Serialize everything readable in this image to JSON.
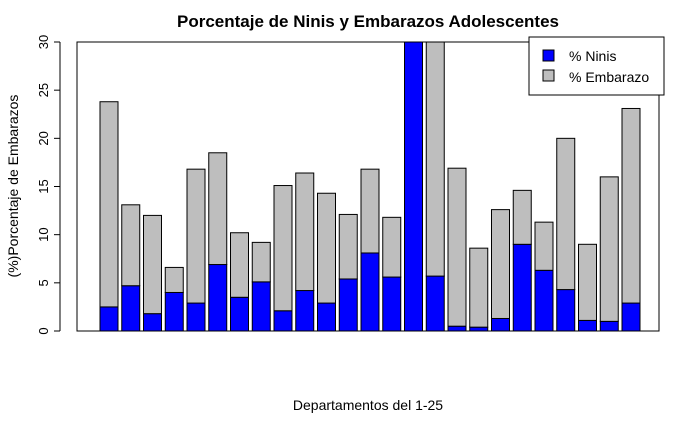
{
  "chart_data": {
    "type": "bar",
    "stacked": true,
    "title": "Porcentaje de Ninis y Embarazos Adolescentes",
    "xlabel": "Departamentos del 1-25",
    "ylabel": "(%)Porcentaje de Embarazos",
    "ylim": [
      0,
      30
    ],
    "yticks": [
      0,
      5,
      10,
      15,
      20,
      25,
      30
    ],
    "grid": false,
    "legend_position": "top-right",
    "series": [
      {
        "name": "% Ninis",
        "color": "#0000ff",
        "values": [
          2.5,
          4.7,
          1.8,
          4.0,
          2.9,
          6.9,
          3.5,
          5.1,
          2.1,
          4.2,
          2.9,
          5.4,
          8.1,
          5.6,
          30.0,
          5.7,
          0.5,
          0.4,
          1.3,
          9.0,
          6.3,
          4.3,
          1.1,
          1.0,
          2.9
        ]
      },
      {
        "name": "% Embarazo",
        "color": "#bebebe",
        "values": [
          21.3,
          8.4,
          10.2,
          2.6,
          13.9,
          11.6,
          6.7,
          4.1,
          13.0,
          12.2,
          11.4,
          6.7,
          8.7,
          6.2,
          0.0,
          24.3,
          16.4,
          8.2,
          11.3,
          5.6,
          5.0,
          15.7,
          7.9,
          15.0,
          20.2
        ]
      }
    ]
  }
}
